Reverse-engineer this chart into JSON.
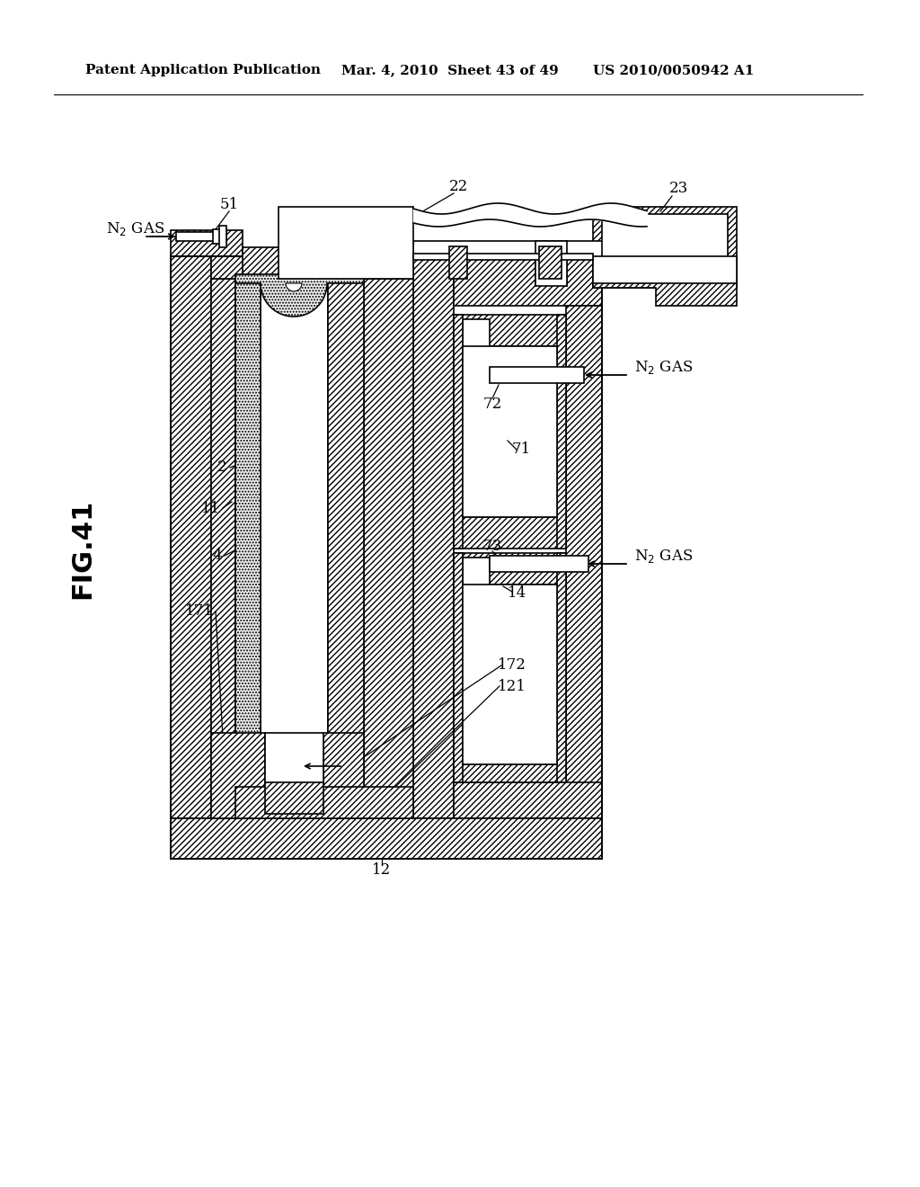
{
  "background": "#ffffff",
  "header_left": "Patent Application Publication",
  "header_mid": "Mar. 4, 2010  Sheet 43 of 49",
  "header_right": "US 2010/0050942 A1",
  "fig_label": "FIG.41",
  "hatch": "/////",
  "dot_hatch": ".....",
  "lw": 1.2
}
